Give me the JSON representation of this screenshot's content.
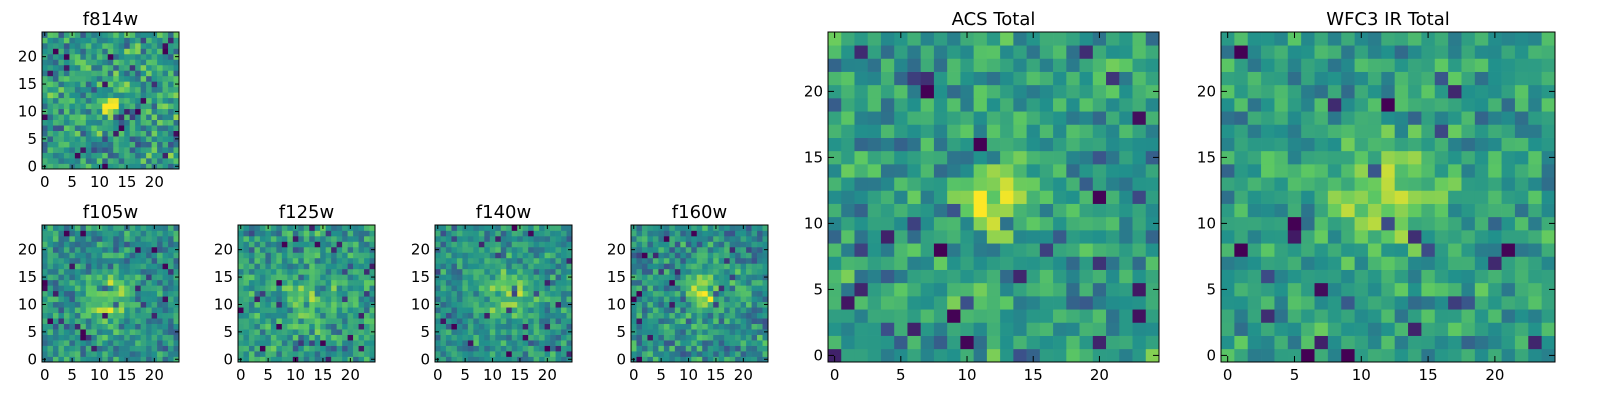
{
  "figure": {
    "background": "#ffffff",
    "colormap": "viridis",
    "colormap_stops": [
      "#440154",
      "#3b528b",
      "#21918c",
      "#5ec962",
      "#fde725"
    ]
  },
  "chart_data": [
    {
      "type": "heatmap",
      "title": "f814w",
      "grid_size": [
        25,
        25
      ],
      "xlim": [
        0,
        24
      ],
      "ylim": [
        0,
        24
      ],
      "xticks": [
        0,
        5,
        10,
        15,
        20
      ],
      "yticks": [
        0,
        5,
        10,
        15,
        20
      ],
      "source_center": [
        12,
        11
      ],
      "source_sigma": 1.4,
      "source_peak": 0.5,
      "base_level": 0.55,
      "noise": 0.2,
      "seed": 11
    },
    {
      "type": "heatmap",
      "title": "f105w",
      "grid_size": [
        25,
        25
      ],
      "xlim": [
        0,
        24
      ],
      "ylim": [
        0,
        24
      ],
      "xticks": [
        0,
        5,
        10,
        15,
        20
      ],
      "yticks": [
        0,
        5,
        10,
        15,
        20
      ],
      "source_center": [
        12,
        11
      ],
      "source_sigma": 3.2,
      "source_peak": 0.3,
      "base_level": 0.5,
      "noise": 0.16,
      "seed": 23
    },
    {
      "type": "heatmap",
      "title": "f125w",
      "grid_size": [
        25,
        25
      ],
      "xlim": [
        0,
        24
      ],
      "ylim": [
        0,
        24
      ],
      "xticks": [
        0,
        5,
        10,
        15,
        20
      ],
      "yticks": [
        0,
        5,
        10,
        15,
        20
      ],
      "source_center": [
        12,
        11
      ],
      "source_sigma": 3.2,
      "source_peak": 0.2,
      "base_level": 0.55,
      "noise": 0.16,
      "seed": 37
    },
    {
      "type": "heatmap",
      "title": "f140w",
      "grid_size": [
        25,
        25
      ],
      "xlim": [
        0,
        24
      ],
      "ylim": [
        0,
        24
      ],
      "xticks": [
        0,
        5,
        10,
        15,
        20
      ],
      "yticks": [
        0,
        5,
        10,
        15,
        20
      ],
      "source_center": [
        13,
        12
      ],
      "source_sigma": 3.2,
      "source_peak": 0.3,
      "base_level": 0.5,
      "noise": 0.16,
      "seed": 41
    },
    {
      "type": "heatmap",
      "title": "f160w",
      "grid_size": [
        25,
        25
      ],
      "xlim": [
        0,
        24
      ],
      "ylim": [
        0,
        24
      ],
      "xticks": [
        0,
        5,
        10,
        15,
        20
      ],
      "yticks": [
        0,
        5,
        10,
        15,
        20
      ],
      "source_center": [
        13,
        12
      ],
      "source_sigma": 2.4,
      "source_peak": 0.35,
      "base_level": 0.5,
      "noise": 0.17,
      "seed": 53
    },
    {
      "type": "heatmap",
      "title": "ACS Total",
      "grid_size": [
        25,
        25
      ],
      "xlim": [
        0,
        24
      ],
      "ylim": [
        0,
        24
      ],
      "xticks": [
        0,
        5,
        10,
        15,
        20
      ],
      "yticks": [
        0,
        5,
        10,
        15,
        20
      ],
      "source_center": [
        12,
        12
      ],
      "source_sigma": 1.6,
      "source_peak": 0.45,
      "base_level": 0.55,
      "noise": 0.17,
      "seed": 67
    },
    {
      "type": "heatmap",
      "title": "WFC3 IR Total",
      "grid_size": [
        25,
        25
      ],
      "xlim": [
        0,
        24
      ],
      "ylim": [
        0,
        24
      ],
      "xticks": [
        0,
        5,
        10,
        15,
        20
      ],
      "yticks": [
        0,
        5,
        10,
        15,
        20
      ],
      "source_center": [
        12,
        12
      ],
      "source_sigma": 3.0,
      "source_peak": 0.3,
      "base_level": 0.55,
      "noise": 0.15,
      "seed": 79
    }
  ]
}
